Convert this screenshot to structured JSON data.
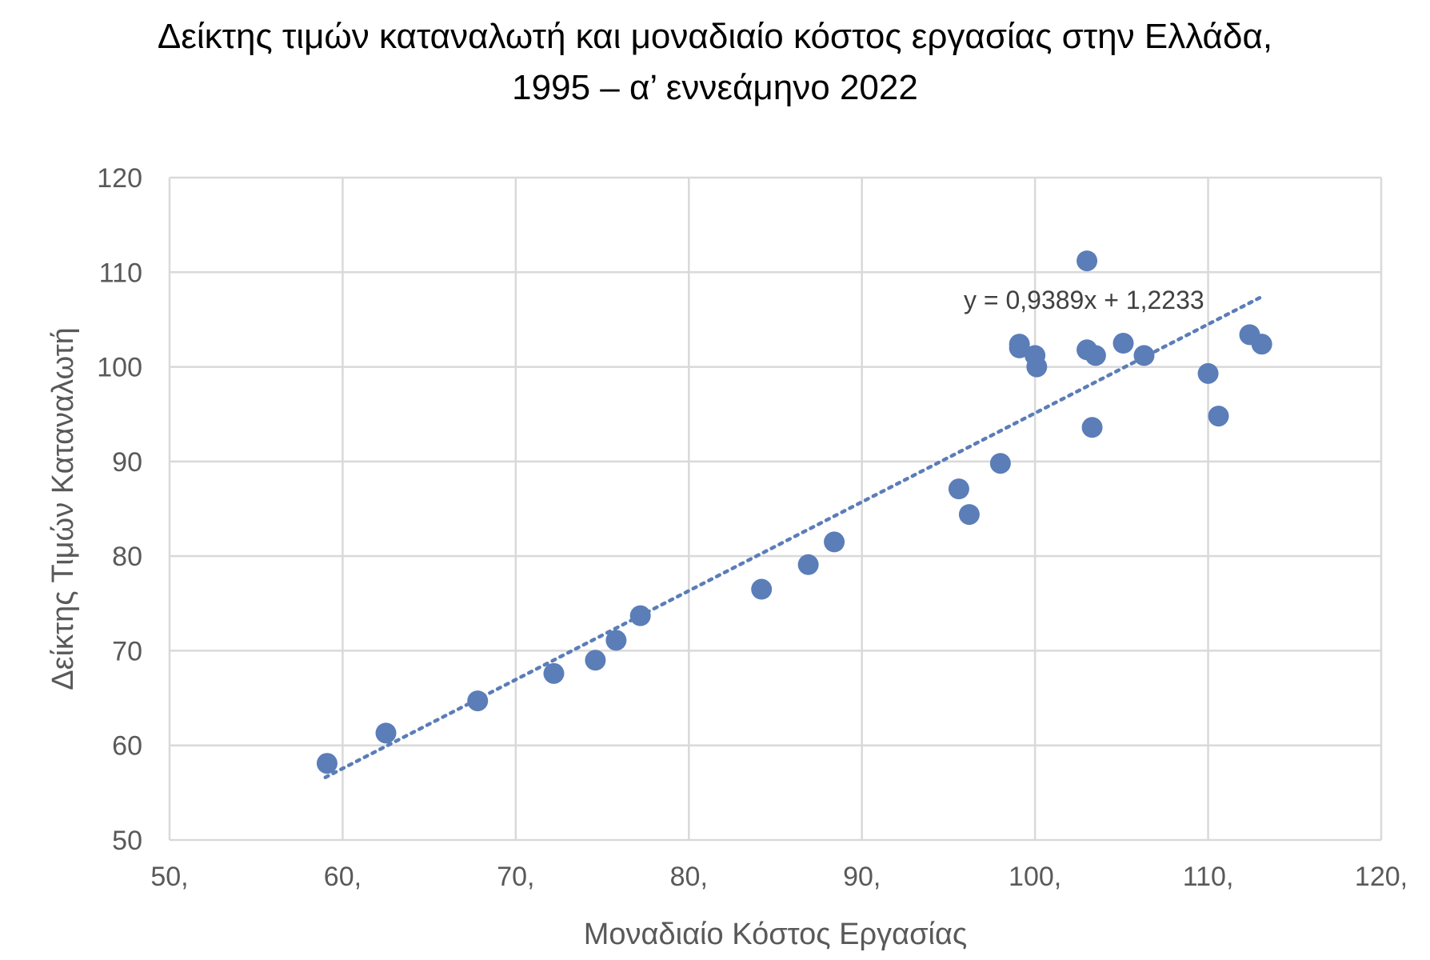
{
  "chart_data": {
    "type": "scatter",
    "title": [
      "Δείκτης τιμών καταναλωτή και μοναδιαίο κόστος εργασίας στην Ελλάδα,",
      "1995 – α’ εννεάμηνο 2022"
    ],
    "xlabel": "Μοναδιαίο Κόστος Εργασίας",
    "ylabel": "Δείκτης Τιμών Καταναλωτή",
    "xlim": [
      50,
      120
    ],
    "ylim": [
      50,
      120
    ],
    "x_ticks": [
      "50,",
      "60,",
      "70,",
      "80,",
      "90,",
      "100,",
      "110,",
      "120,"
    ],
    "y_ticks": [
      "50",
      "60",
      "70",
      "80",
      "90",
      "100",
      "110",
      "120"
    ],
    "grid": true,
    "legend": "none",
    "marker_color": "#5B7DB8",
    "trendline": {
      "type": "linear",
      "slope": 0.9389,
      "intercept": 1.2233,
      "x_range": [
        59.0,
        113.0
      ],
      "equation_label": "y = 0,9389x + 1,2233",
      "style": "dotted"
    },
    "points": [
      {
        "x": 59.1,
        "y": 58.1
      },
      {
        "x": 62.5,
        "y": 61.3
      },
      {
        "x": 67.8,
        "y": 64.7
      },
      {
        "x": 72.2,
        "y": 67.6
      },
      {
        "x": 74.6,
        "y": 69.0
      },
      {
        "x": 75.8,
        "y": 71.1
      },
      {
        "x": 77.2,
        "y": 73.7
      },
      {
        "x": 84.2,
        "y": 76.5
      },
      {
        "x": 86.9,
        "y": 79.1
      },
      {
        "x": 88.4,
        "y": 81.5
      },
      {
        "x": 95.6,
        "y": 87.1
      },
      {
        "x": 96.2,
        "y": 84.4
      },
      {
        "x": 98.0,
        "y": 89.8
      },
      {
        "x": 99.1,
        "y": 102.4
      },
      {
        "x": 99.1,
        "y": 102.0
      },
      {
        "x": 100.0,
        "y": 101.2
      },
      {
        "x": 100.1,
        "y": 100.0
      },
      {
        "x": 103.0,
        "y": 111.2
      },
      {
        "x": 103.0,
        "y": 101.8
      },
      {
        "x": 103.3,
        "y": 93.6
      },
      {
        "x": 103.5,
        "y": 101.2
      },
      {
        "x": 105.1,
        "y": 102.5
      },
      {
        "x": 106.3,
        "y": 101.2
      },
      {
        "x": 110.0,
        "y": 99.3
      },
      {
        "x": 110.6,
        "y": 94.8
      },
      {
        "x": 112.4,
        "y": 103.4
      },
      {
        "x": 113.1,
        "y": 102.4
      }
    ]
  }
}
